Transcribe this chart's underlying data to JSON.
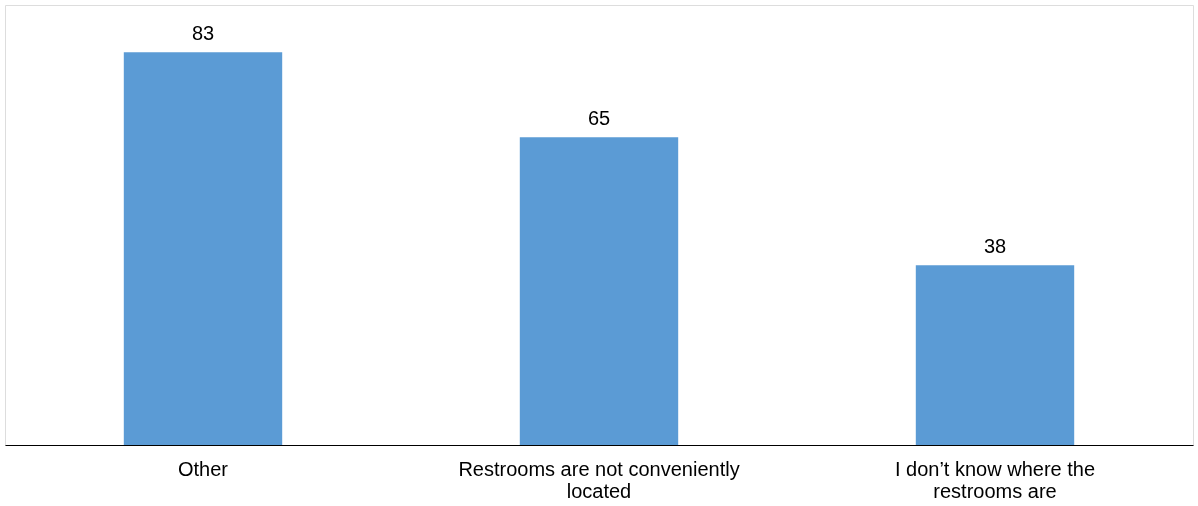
{
  "chart_data": {
    "type": "bar",
    "categories": [
      "Other",
      "Restrooms are not conveniently located",
      "I don’t know where the restrooms are"
    ],
    "values": [
      83,
      65,
      38
    ],
    "color": "#5b9bd5",
    "data_labels": true
  }
}
